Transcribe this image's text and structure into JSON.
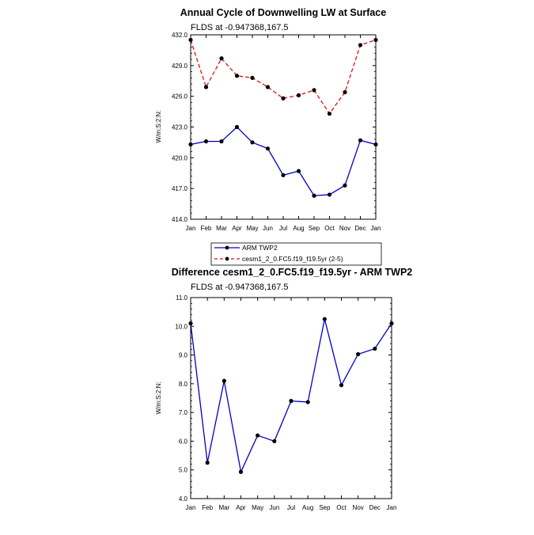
{
  "chart_data": [
    {
      "type": "line",
      "title": "Annual Cycle of Downwelling LW at Surface",
      "subtitle": "FLDS at -0.947368,167.5",
      "ylabel": "W/m:S:2:N:",
      "ylim": [
        414.0,
        432.0
      ],
      "yticks": [
        "414.0",
        "417.0",
        "420.0",
        "423.0",
        "426.0",
        "429.0",
        "432.0"
      ],
      "categories": [
        "Jan",
        "Feb",
        "Mar",
        "Apr",
        "May",
        "Jun",
        "Jul",
        "Aug",
        "Sep",
        "Oct",
        "Nov",
        "Dec",
        "Jan"
      ],
      "series": [
        {
          "name": "ARM TWP2",
          "color": "#0000cc",
          "dash": "solid",
          "values": [
            421.3,
            421.6,
            421.6,
            423.0,
            421.5,
            420.9,
            418.3,
            418.7,
            416.3,
            416.4,
            417.3,
            421.7,
            421.3
          ]
        },
        {
          "name": "cesm1_2_0.FC5.f19_f19.5yr (2-5)",
          "color": "#dd1111",
          "dash": "dashed",
          "values": [
            431.5,
            426.9,
            429.7,
            428.0,
            427.8,
            426.9,
            425.8,
            426.1,
            426.6,
            424.3,
            426.4,
            431.0,
            431.5
          ]
        }
      ],
      "legend_position": "bottom"
    },
    {
      "type": "line",
      "title": "Difference cesm1_2_0.FC5.f19_f19.5yr - ARM TWP2",
      "subtitle": "FLDS at -0.947368,167.5",
      "ylabel": "W/m:S:2:N:",
      "ylim": [
        4.0,
        11.0
      ],
      "yticks": [
        "4.0",
        "5.0",
        "6.0",
        "7.0",
        "8.0",
        "9.0",
        "10.0",
        "11.0"
      ],
      "categories": [
        "Jan",
        "Feb",
        "Mar",
        "Apr",
        "May",
        "Jun",
        "Jul",
        "Aug",
        "Sep",
        "Oct",
        "Nov",
        "Dec",
        "Jan"
      ],
      "series": [
        {
          "color": "#0000cc",
          "dash": "solid",
          "values": [
            10.1,
            5.25,
            8.1,
            4.93,
            6.2,
            6.0,
            7.4,
            7.36,
            10.25,
            7.95,
            9.03,
            9.22,
            10.1
          ]
        }
      ]
    }
  ]
}
